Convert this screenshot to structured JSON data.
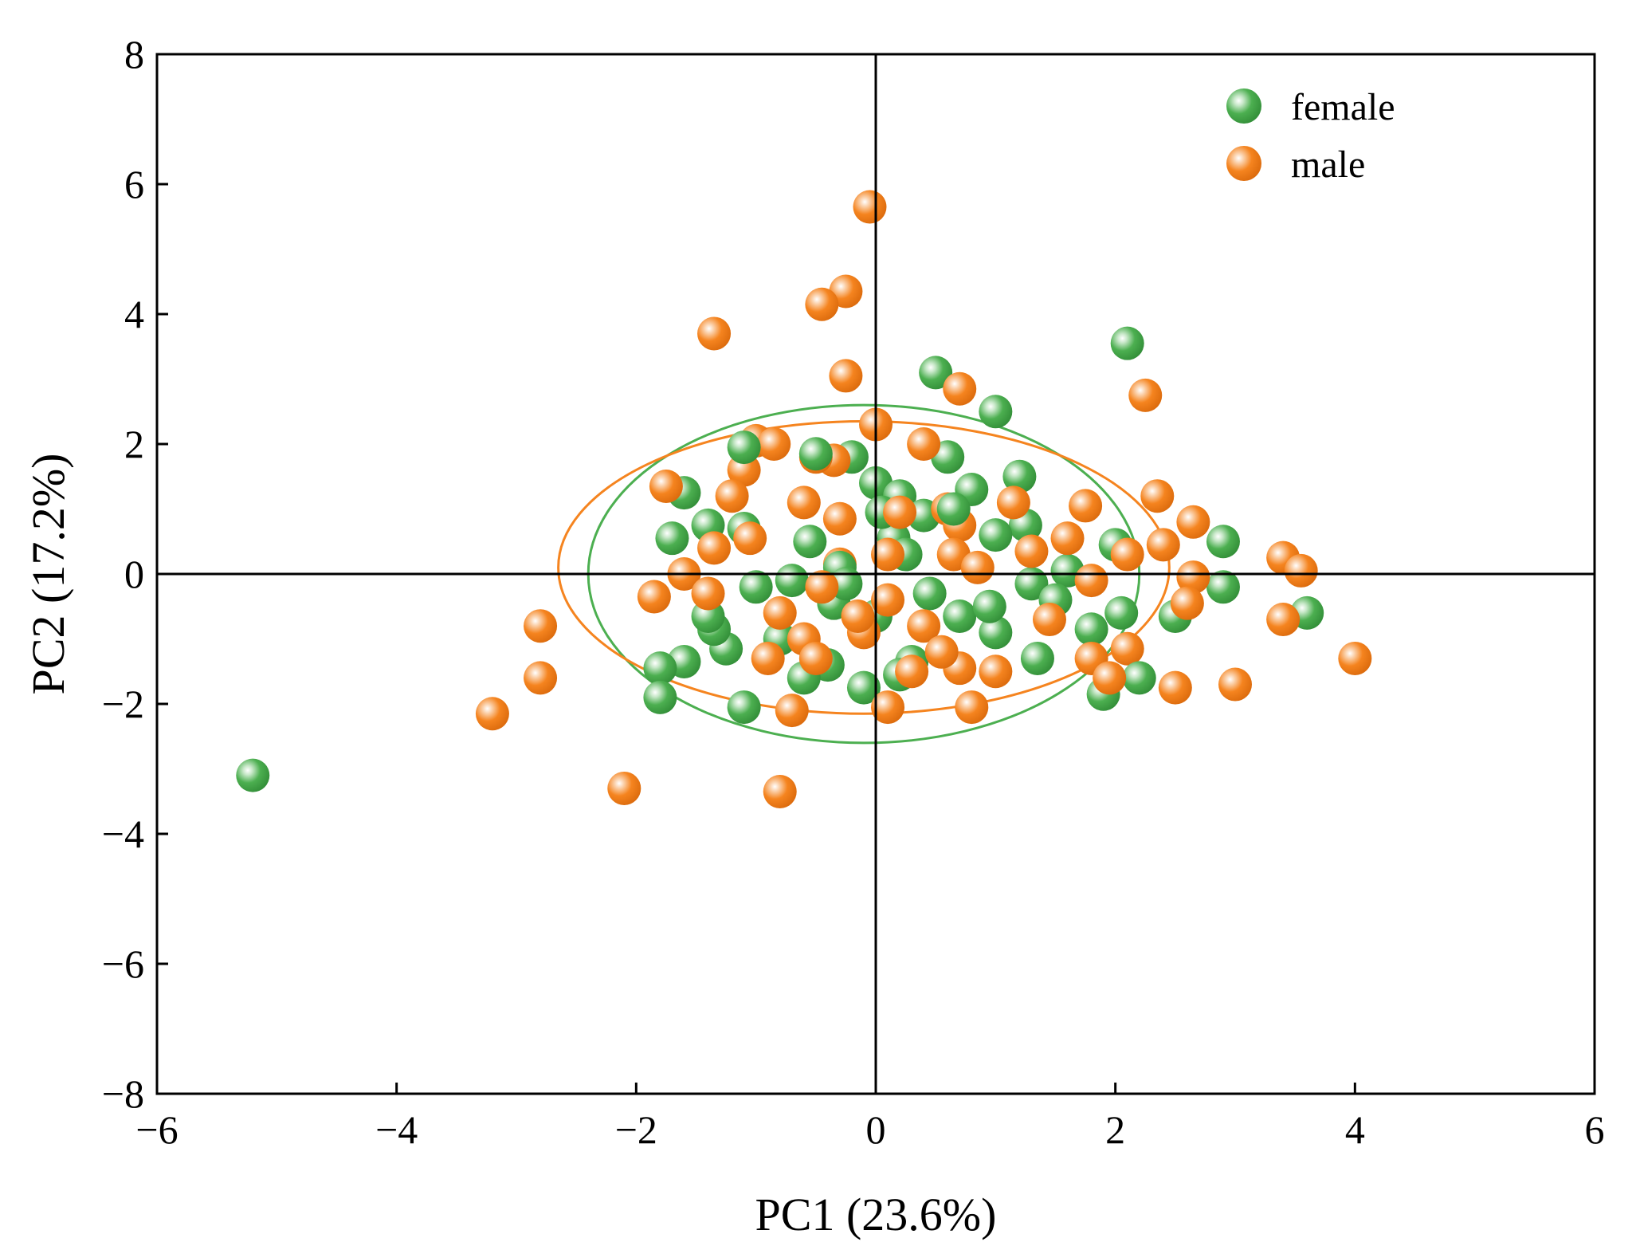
{
  "chart_data": {
    "type": "scatter",
    "title": "",
    "xlabel": "PC1 (23.6%)",
    "ylabel": "PC2 (17.2%)",
    "xlim": [
      -6,
      6
    ],
    "ylim": [
      -8,
      8
    ],
    "xticks": [
      -6,
      -4,
      -2,
      0,
      2,
      4,
      6
    ],
    "yticks": [
      -8,
      -6,
      -4,
      -2,
      0,
      2,
      4,
      6,
      8
    ],
    "xtick_labels": [
      "−6",
      "−4",
      "−2",
      "0",
      "2",
      "4",
      "6"
    ],
    "ytick_labels": [
      "−8",
      "−6",
      "−4",
      "−2",
      "0",
      "2",
      "4",
      "6",
      "8"
    ],
    "reference_lines": {
      "x": 0,
      "y": 0
    },
    "grid": false,
    "legend": {
      "position": "top-right",
      "entries": [
        "female",
        "male"
      ]
    },
    "series": [
      {
        "name": "female",
        "color": "#4CAF50",
        "ellipse": {
          "cx": -0.1,
          "cy": 0.0,
          "rx": 2.3,
          "ry": 2.6
        },
        "points": [
          [
            -5.2,
            -3.1
          ],
          [
            2.1,
            3.55
          ],
          [
            0.5,
            3.1
          ],
          [
            1.0,
            2.5
          ],
          [
            0.6,
            1.8
          ],
          [
            1.2,
            1.5
          ],
          [
            -1.6,
            1.25
          ],
          [
            -1.4,
            0.75
          ],
          [
            -1.7,
            0.55
          ],
          [
            -1.1,
            0.7
          ],
          [
            -0.2,
            1.8
          ],
          [
            0.0,
            1.4
          ],
          [
            0.2,
            1.2
          ],
          [
            0.4,
            0.9
          ],
          [
            0.8,
            1.3
          ],
          [
            -0.5,
            1.85
          ],
          [
            -1.1,
            1.95
          ],
          [
            1.25,
            0.75
          ],
          [
            1.0,
            0.6
          ],
          [
            2.9,
            0.5
          ],
          [
            2.9,
            -0.2
          ],
          [
            3.6,
            -0.6
          ],
          [
            2.5,
            -0.65
          ],
          [
            2.05,
            -0.6
          ],
          [
            1.8,
            -0.85
          ],
          [
            1.9,
            -1.85
          ],
          [
            1.35,
            -1.3
          ],
          [
            1.0,
            -0.9
          ],
          [
            0.7,
            -0.65
          ],
          [
            0.3,
            -1.35
          ],
          [
            0.2,
            -1.55
          ],
          [
            -0.1,
            -1.75
          ],
          [
            -0.4,
            -1.4
          ],
          [
            -0.6,
            -1.6
          ],
          [
            -0.8,
            -1.0
          ],
          [
            -1.1,
            -2.05
          ],
          [
            -1.25,
            -1.15
          ],
          [
            -1.35,
            -0.85
          ],
          [
            -1.4,
            -0.65
          ],
          [
            -1.6,
            -1.35
          ],
          [
            -1.8,
            -1.45
          ],
          [
            -1.8,
            -1.9
          ],
          [
            -1.0,
            -0.2
          ],
          [
            -0.7,
            -0.1
          ],
          [
            -0.35,
            -0.45
          ],
          [
            0.0,
            -0.65
          ],
          [
            0.15,
            0.55
          ],
          [
            0.25,
            0.3
          ],
          [
            1.6,
            0.05
          ],
          [
            2.0,
            0.45
          ],
          [
            1.3,
            -0.15
          ],
          [
            0.95,
            -0.5
          ],
          [
            -0.3,
            0.1
          ],
          [
            0.05,
            0.95
          ],
          [
            -0.25,
            -0.15
          ],
          [
            0.45,
            -0.3
          ],
          [
            1.5,
            -0.4
          ],
          [
            2.2,
            -1.6
          ],
          [
            -0.55,
            0.5
          ],
          [
            0.65,
            1.0
          ]
        ]
      },
      {
        "name": "male",
        "color": "#F5841F",
        "ellipse": {
          "cx": -0.1,
          "cy": 0.1,
          "rx": 2.55,
          "ry": 2.25
        },
        "points": [
          [
            -0.05,
            5.65
          ],
          [
            -0.25,
            4.35
          ],
          [
            -0.45,
            4.15
          ],
          [
            -1.35,
            3.7
          ],
          [
            -0.25,
            3.05
          ],
          [
            0.7,
            2.85
          ],
          [
            2.25,
            2.75
          ],
          [
            0.0,
            2.3
          ],
          [
            -1.0,
            2.05
          ],
          [
            -0.85,
            2.0
          ],
          [
            0.4,
            2.0
          ],
          [
            -0.35,
            1.75
          ],
          [
            -0.5,
            1.8
          ],
          [
            -1.1,
            1.6
          ],
          [
            -1.75,
            1.35
          ],
          [
            -1.2,
            1.2
          ],
          [
            -0.6,
            1.1
          ],
          [
            -0.3,
            0.85
          ],
          [
            0.6,
            1.0
          ],
          [
            0.7,
            0.75
          ],
          [
            1.15,
            1.1
          ],
          [
            1.75,
            1.05
          ],
          [
            2.35,
            1.2
          ],
          [
            2.65,
            0.8
          ],
          [
            2.4,
            0.45
          ],
          [
            3.4,
            0.25
          ],
          [
            3.55,
            0.05
          ],
          [
            2.65,
            -0.05
          ],
          [
            2.6,
            -0.45
          ],
          [
            3.4,
            -0.7
          ],
          [
            4.0,
            -1.3
          ],
          [
            3.0,
            -1.7
          ],
          [
            2.5,
            -1.75
          ],
          [
            2.1,
            -1.15
          ],
          [
            1.8,
            -1.3
          ],
          [
            0.8,
            -2.05
          ],
          [
            1.0,
            -1.5
          ],
          [
            0.7,
            -1.45
          ],
          [
            0.1,
            -2.05
          ],
          [
            -0.7,
            -2.1
          ],
          [
            -0.8,
            -3.35
          ],
          [
            -2.1,
            -3.3
          ],
          [
            -3.2,
            -2.15
          ],
          [
            -2.8,
            -1.6
          ],
          [
            -2.8,
            -0.8
          ],
          [
            -1.85,
            -0.35
          ],
          [
            -1.6,
            0.0
          ],
          [
            -1.35,
            0.4
          ],
          [
            -0.6,
            -1.0
          ],
          [
            -0.5,
            -1.3
          ],
          [
            -0.8,
            -0.6
          ],
          [
            -0.3,
            0.15
          ],
          [
            0.1,
            0.3
          ],
          [
            0.65,
            0.3
          ],
          [
            1.3,
            0.35
          ],
          [
            1.6,
            0.55
          ],
          [
            2.1,
            0.3
          ],
          [
            1.8,
            -0.1
          ],
          [
            1.45,
            -0.7
          ],
          [
            0.4,
            -0.8
          ],
          [
            0.1,
            -0.4
          ],
          [
            -0.1,
            -0.9
          ],
          [
            0.3,
            -1.5
          ],
          [
            -0.45,
            -0.2
          ],
          [
            -0.9,
            -1.3
          ],
          [
            -1.05,
            0.55
          ],
          [
            0.85,
            0.1
          ],
          [
            0.2,
            0.95
          ],
          [
            -0.15,
            -0.65
          ],
          [
            1.95,
            -1.6
          ],
          [
            -1.4,
            -0.3
          ],
          [
            0.55,
            -1.2
          ]
        ]
      }
    ]
  }
}
